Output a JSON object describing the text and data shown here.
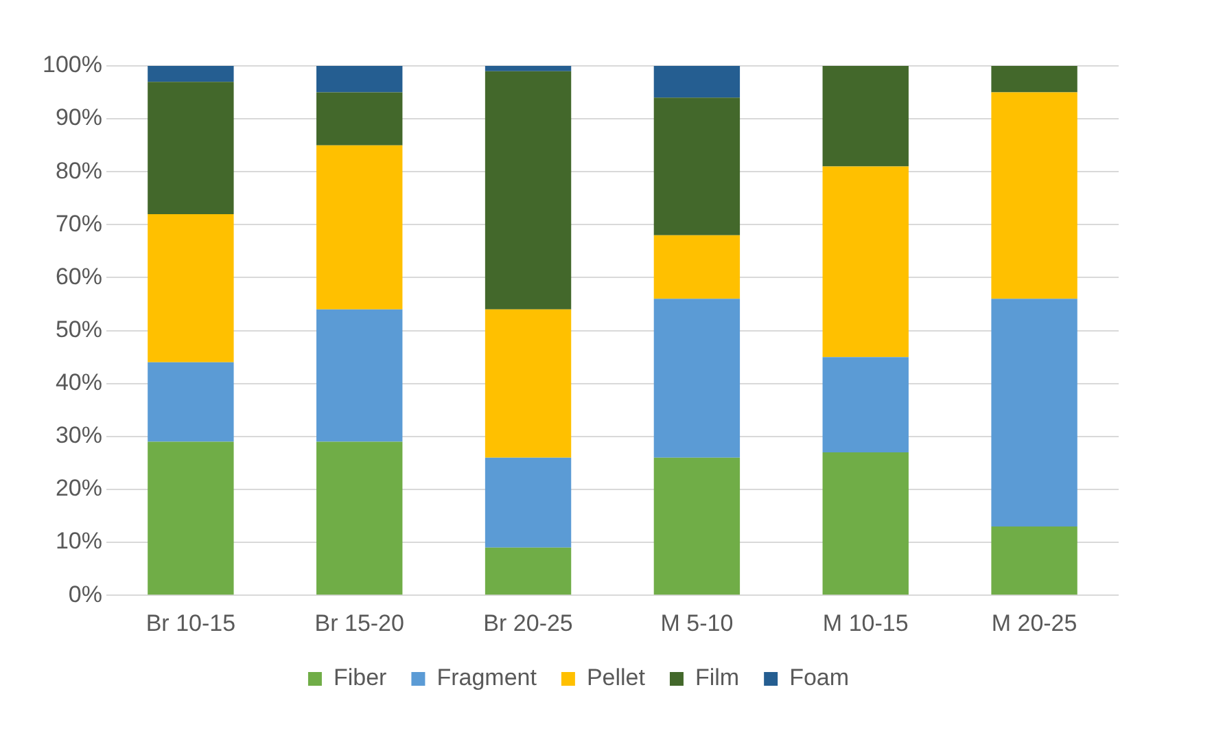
{
  "chart_data": {
    "type": "bar",
    "stacked": true,
    "categories": [
      "Br 10-15",
      "Br 15-20",
      "Br 20-25",
      "M 5-10",
      "M 10-15",
      "M 20-25"
    ],
    "series": [
      {
        "name": "Fiber",
        "color": "#70ad47",
        "values": [
          29,
          29,
          9,
          26,
          27,
          13
        ]
      },
      {
        "name": "Fragment",
        "color": "#5b9bd5",
        "values": [
          15,
          25,
          17,
          30,
          18,
          43
        ]
      },
      {
        "name": "Pellet",
        "color": "#ffc000",
        "values": [
          28,
          31,
          28,
          12,
          36,
          39
        ]
      },
      {
        "name": "Film",
        "color": "#43682b",
        "values": [
          25,
          10,
          45,
          26,
          19,
          5
        ]
      },
      {
        "name": "Foam",
        "color": "#255e91",
        "values": [
          3,
          5,
          1,
          6,
          0,
          0
        ]
      }
    ],
    "ylim": [
      0,
      100
    ],
    "yticks": [
      {
        "value": 0,
        "label": "0%"
      },
      {
        "value": 10,
        "label": "10%"
      },
      {
        "value": 20,
        "label": "20%"
      },
      {
        "value": 30,
        "label": "30%"
      },
      {
        "value": 40,
        "label": "40%"
      },
      {
        "value": 50,
        "label": "50%"
      },
      {
        "value": 60,
        "label": "60%"
      },
      {
        "value": 70,
        "label": "70%"
      },
      {
        "value": 80,
        "label": "80%"
      },
      {
        "value": 90,
        "label": "90%"
      },
      {
        "value": 100,
        "label": "100%"
      }
    ],
    "grid": "y",
    "legend": "bottom"
  }
}
